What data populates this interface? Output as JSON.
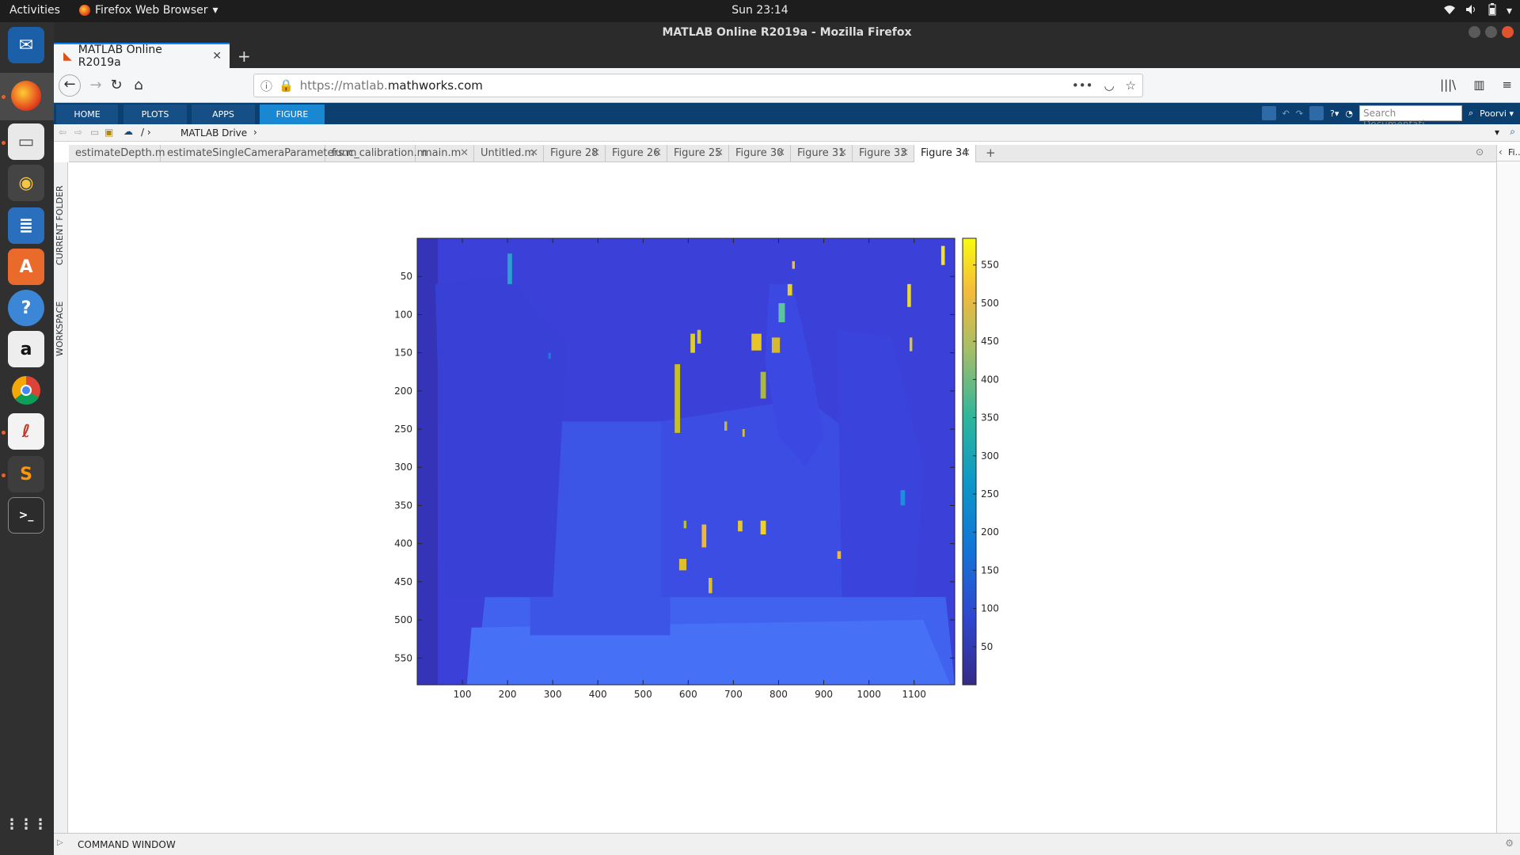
{
  "topbar": {
    "activities": "Activities",
    "app_menu": "Firefox Web Browser",
    "clock": "Sun 23:14"
  },
  "window": {
    "title": "MATLAB Online R2019a - Mozilla Firefox"
  },
  "browser": {
    "tab_title": "MATLAB Online R2019a",
    "url_proto": "https://matlab.",
    "url_host": "mathworks.com"
  },
  "matlab": {
    "toolstrip_tabs": [
      "HOME",
      "PLOTS",
      "APPS",
      "FIGURE"
    ],
    "active_tab": "FIGURE",
    "search_placeholder": "Search Documentati",
    "user": "Poorvi",
    "breadcrumb": "MATLAB Drive",
    "side_labels": [
      "CURRENT FOLDER",
      "WORKSPACE"
    ],
    "editor_tabs": [
      "estimateDepth.m",
      "estimateSingleCameraParameters.m",
      "func_calibration.m",
      "main.m",
      "Untitled.m",
      "Figure 28",
      "Figure 26",
      "Figure 25",
      "Figure 30",
      "Figure 31",
      "Figure 33",
      "Figure 34"
    ],
    "active_editor_tab": "Figure 34",
    "right_panel_tab": "Fi...",
    "command_window": "COMMAND WINDOW"
  },
  "chart_data": {
    "type": "heatmap",
    "title": "",
    "xlabel": "",
    "ylabel": "",
    "xlim": [
      0,
      1190
    ],
    "ylim": [
      585,
      0
    ],
    "xticks": [
      100,
      200,
      300,
      400,
      500,
      600,
      700,
      800,
      900,
      1000,
      1100
    ],
    "yticks": [
      50,
      100,
      150,
      200,
      250,
      300,
      350,
      400,
      450,
      500,
      550
    ],
    "colorbar": {
      "range": [
        0,
        585
      ],
      "ticks": [
        50,
        100,
        150,
        200,
        250,
        300,
        350,
        400,
        450,
        500,
        550
      ],
      "colormap": "parula"
    }
  },
  "colors": {
    "toolstrip_bg": "#0a3f6f",
    "toolstrip_active": "#1a87d2",
    "background_level": "#3a40d8",
    "foreground_level": "#3f62f2"
  }
}
